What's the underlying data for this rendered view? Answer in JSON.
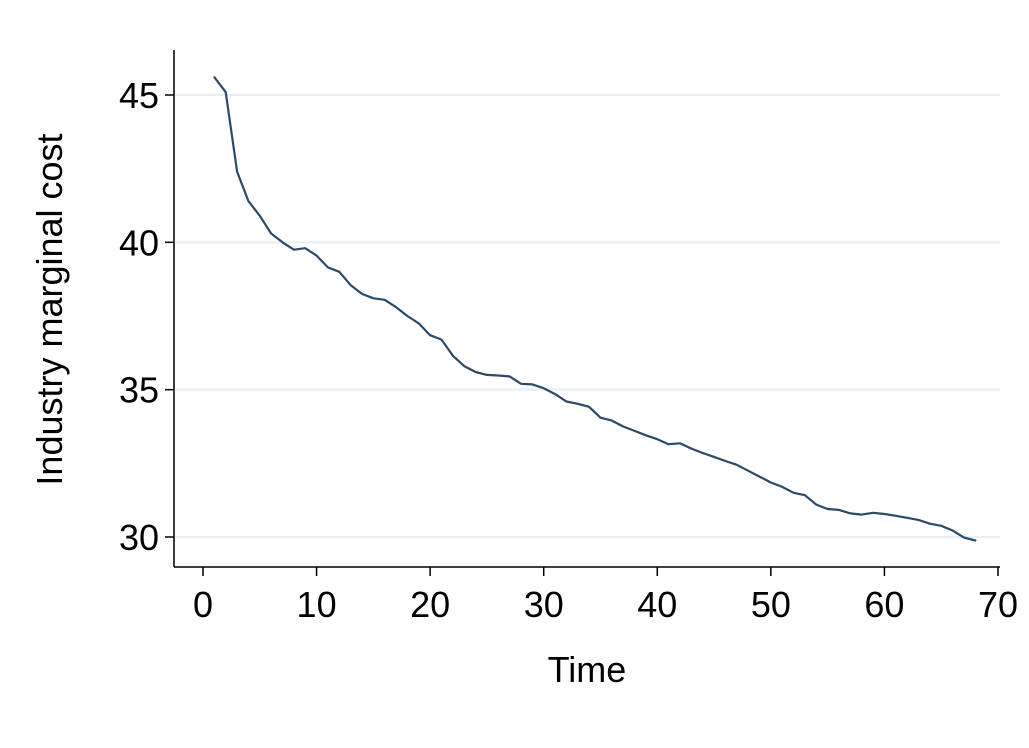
{
  "chart_data": {
    "type": "line",
    "title": "",
    "xlabel": "Time",
    "ylabel": "Industry marginal cost",
    "xlim": [
      0,
      70
    ],
    "ylim": [
      29,
      46.5
    ],
    "xticks": [
      0,
      10,
      20,
      30,
      40,
      50,
      60,
      70
    ],
    "yticks": [
      30,
      35,
      40,
      45
    ],
    "grid": "horizontal",
    "legend": "none",
    "colors": {
      "line": "#2b4a6b",
      "grid": "#e8eff2",
      "axis": "#000000"
    },
    "series": [
      {
        "x": [
          1,
          2,
          3,
          4,
          5,
          6,
          7,
          8,
          9,
          10,
          11,
          12,
          13,
          14,
          15,
          16,
          17,
          18,
          19,
          20,
          21,
          22,
          23,
          24,
          25,
          26,
          27,
          28,
          29,
          30,
          31,
          32,
          33,
          34,
          35,
          36,
          37,
          38,
          39,
          40,
          41,
          42,
          43,
          44,
          45,
          46,
          47,
          48,
          49,
          50,
          51,
          52,
          53,
          54,
          55,
          56,
          57,
          58,
          59,
          60,
          61,
          62,
          63,
          64,
          65,
          66,
          67,
          68
        ],
        "values": [
          45.6,
          45.1,
          42.4,
          41.4,
          40.9,
          40.3,
          40.0,
          39.75,
          39.8,
          39.55,
          39.15,
          39.0,
          38.55,
          38.25,
          38.1,
          38.05,
          37.8,
          37.5,
          37.25,
          36.85,
          36.7,
          36.15,
          35.8,
          35.6,
          35.5,
          35.48,
          35.45,
          35.2,
          35.18,
          35.05,
          34.85,
          34.6,
          34.52,
          34.42,
          34.05,
          33.95,
          33.75,
          33.6,
          33.45,
          33.32,
          33.15,
          33.18,
          33.0,
          32.85,
          32.72,
          32.58,
          32.45,
          32.25,
          32.05,
          31.85,
          31.7,
          31.5,
          31.42,
          31.1,
          30.95,
          30.92,
          30.8,
          30.76,
          30.82,
          30.78,
          30.72,
          30.65,
          30.58,
          30.45,
          30.38,
          30.22,
          29.98,
          29.88
        ]
      }
    ]
  }
}
